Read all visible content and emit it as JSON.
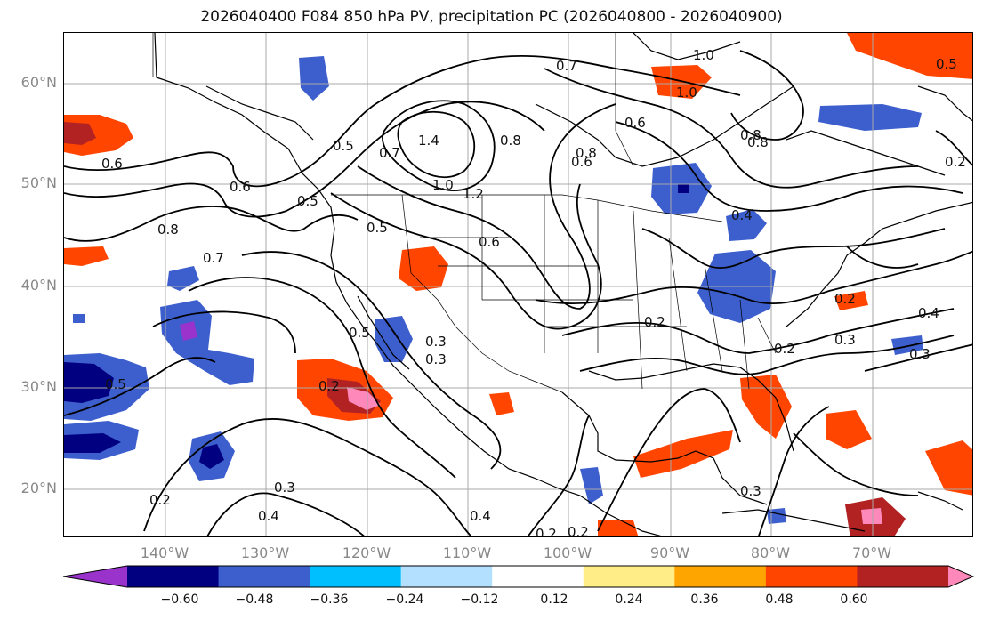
{
  "title": "2026040400 F084 850 hPa PV, precipitation PC (2026040800 - 2026040900)",
  "map": {
    "lat_labels": [
      "60°N",
      "50°N",
      "40°N",
      "30°N",
      "20°N"
    ],
    "lon_labels": [
      "140°W",
      "130°W",
      "120°W",
      "110°W",
      "100°W",
      "90°W",
      "80°W",
      "70°W"
    ],
    "contour_labels": [
      "0.7",
      "1.0",
      "1.0",
      "0.6",
      "0.5",
      "1.4",
      "0.8",
      "0.6",
      "0.6",
      "0.5",
      "0.7",
      "1.2",
      "1.0",
      "0.8",
      "0.6",
      "0.8",
      "0.7",
      "0.8",
      "0.5",
      "0.6",
      "0.4",
      "0.5",
      "0.3",
      "0.2",
      "0.5",
      "0.2",
      "0.3",
      "0.4",
      "0.3",
      "0.4",
      "0.2",
      "0.3",
      "0.2",
      "0.2",
      "0.3",
      "0.3",
      "0.2",
      "0.4",
      "0.2",
      "0.2",
      "0.8",
      "0.5"
    ]
  },
  "colorbar": {
    "colors": [
      "#9933cc",
      "#000080",
      "#3d5fcd",
      "#00bfff",
      "#b3e0ff",
      "#ffffff",
      "#ffee88",
      "#ffa500",
      "#ff4500",
      "#b22222",
      "#ff88bb"
    ],
    "tick_labels": [
      "−0.60",
      "−0.48",
      "−0.36",
      "−0.24",
      "−0.12",
      "0.12",
      "0.24",
      "0.36",
      "0.48",
      "0.60"
    ]
  }
}
